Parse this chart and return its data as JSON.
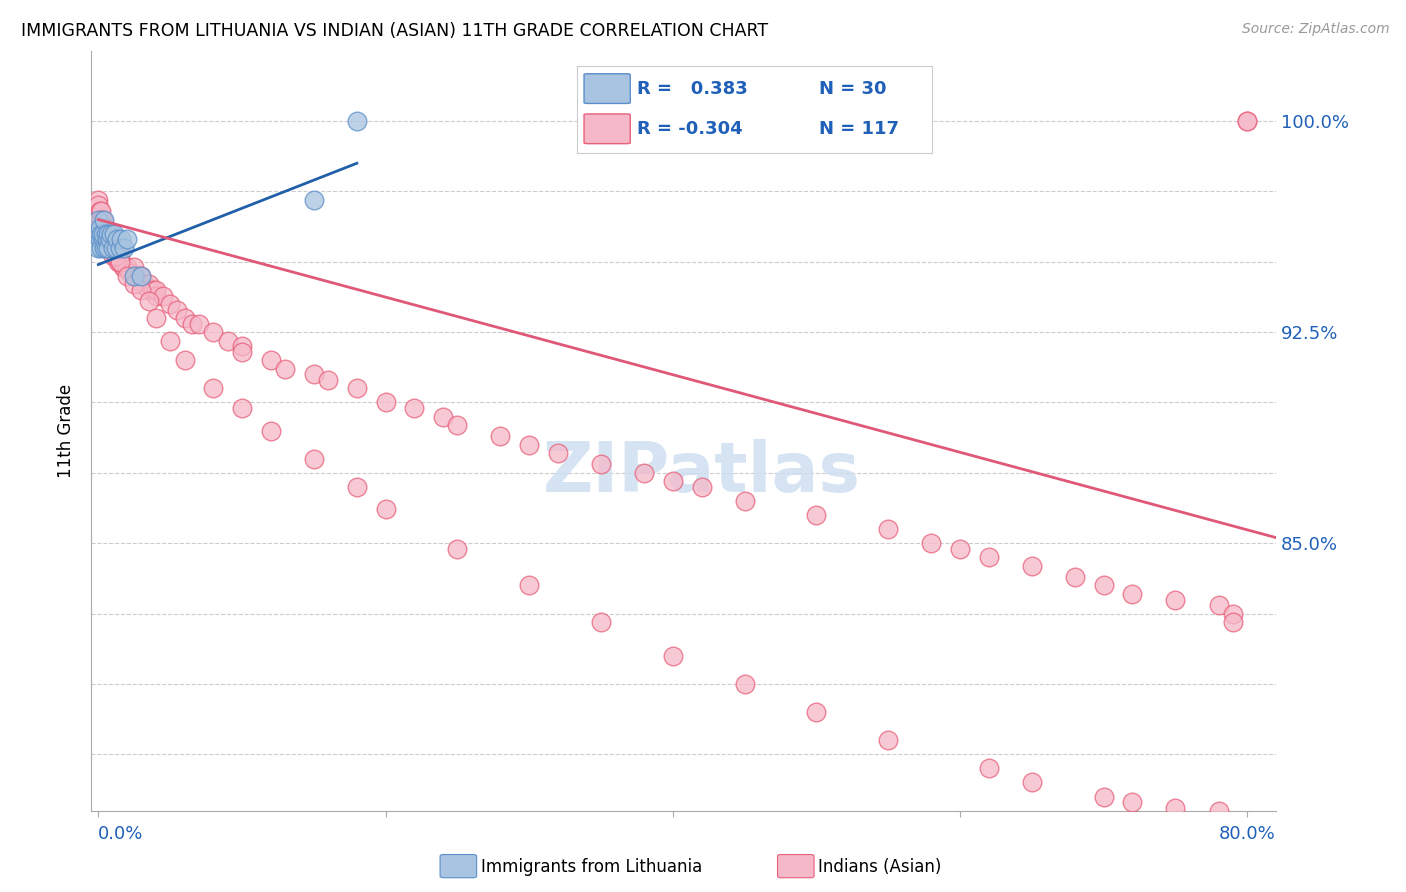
{
  "title": "IMMIGRANTS FROM LITHUANIA VS INDIAN (ASIAN) 11TH GRADE CORRELATION CHART",
  "source_text": "Source: ZipAtlas.com",
  "ylabel": "11th Grade",
  "blue_color": "#a8c4e0",
  "pink_color": "#f5b8c8",
  "blue_edge_color": "#5b8fc9",
  "pink_edge_color": "#e8607a",
  "blue_line_color": "#2060a8",
  "pink_line_color": "#e05878",
  "legend_text_color": "#2060b8",
  "watermark_color": "#ccddf0",
  "xlabel_color": "#2060b8",
  "yticklabel_color": "#2060b8",
  "grid_color": "#cccccc",
  "y_ticks": [
    0.775,
    0.8,
    0.825,
    0.85,
    0.875,
    0.9,
    0.925,
    0.95,
    0.975,
    1.0
  ],
  "y_tick_labels": [
    "",
    "",
    "",
    "85.0%",
    "",
    "",
    "92.5%",
    "",
    "",
    "100.0%"
  ],
  "ylim": [
    0.755,
    1.025
  ],
  "xlim": [
    -0.005,
    0.82
  ],
  "blue_x": [
    0.0,
    0.0,
    0.0,
    0.001,
    0.001,
    0.002,
    0.002,
    0.003,
    0.003,
    0.004,
    0.004,
    0.005,
    0.005,
    0.006,
    0.007,
    0.007,
    0.008,
    0.009,
    0.01,
    0.011,
    0.012,
    0.013,
    0.015,
    0.016,
    0.018,
    0.02,
    0.025,
    0.03,
    0.15,
    0.18
  ],
  "blue_y": [
    0.96,
    0.955,
    0.965,
    0.958,
    0.962,
    0.955,
    0.96,
    0.958,
    0.96,
    0.955,
    0.965,
    0.955,
    0.96,
    0.958,
    0.96,
    0.955,
    0.958,
    0.96,
    0.955,
    0.96,
    0.955,
    0.958,
    0.955,
    0.958,
    0.955,
    0.958,
    0.945,
    0.945,
    0.972,
    1.0
  ],
  "pink_x": [
    0.0,
    0.0,
    0.001,
    0.001,
    0.002,
    0.002,
    0.003,
    0.003,
    0.004,
    0.004,
    0.005,
    0.005,
    0.006,
    0.006,
    0.007,
    0.007,
    0.008,
    0.008,
    0.009,
    0.009,
    0.01,
    0.01,
    0.011,
    0.012,
    0.013,
    0.014,
    0.015,
    0.015,
    0.016,
    0.017,
    0.018,
    0.02,
    0.022,
    0.025,
    0.025,
    0.028,
    0.03,
    0.03,
    0.032,
    0.035,
    0.035,
    0.038,
    0.04,
    0.04,
    0.045,
    0.05,
    0.055,
    0.06,
    0.065,
    0.07,
    0.08,
    0.09,
    0.1,
    0.1,
    0.12,
    0.13,
    0.15,
    0.16,
    0.18,
    0.2,
    0.22,
    0.24,
    0.25,
    0.28,
    0.3,
    0.32,
    0.35,
    0.38,
    0.4,
    0.42,
    0.45,
    0.5,
    0.55,
    0.58,
    0.6,
    0.62,
    0.65,
    0.68,
    0.7,
    0.72,
    0.75,
    0.78,
    0.79,
    0.79,
    0.0,
    0.002,
    0.005,
    0.008,
    0.012,
    0.015,
    0.02,
    0.025,
    0.03,
    0.035,
    0.04,
    0.05,
    0.06,
    0.08,
    0.1,
    0.12,
    0.15,
    0.18,
    0.2,
    0.25,
    0.3,
    0.35,
    0.4,
    0.45,
    0.5,
    0.55,
    0.62,
    0.65,
    0.7,
    0.72,
    0.75,
    0.78,
    0.8,
    0.8
  ],
  "pink_y": [
    0.972,
    0.97,
    0.968,
    0.965,
    0.968,
    0.965,
    0.965,
    0.962,
    0.962,
    0.96,
    0.962,
    0.96,
    0.958,
    0.96,
    0.958,
    0.955,
    0.958,
    0.955,
    0.958,
    0.955,
    0.955,
    0.952,
    0.955,
    0.952,
    0.952,
    0.95,
    0.952,
    0.95,
    0.95,
    0.948,
    0.948,
    0.948,
    0.946,
    0.945,
    0.948,
    0.945,
    0.942,
    0.945,
    0.942,
    0.94,
    0.942,
    0.94,
    0.938,
    0.94,
    0.938,
    0.935,
    0.933,
    0.93,
    0.928,
    0.928,
    0.925,
    0.922,
    0.92,
    0.918,
    0.915,
    0.912,
    0.91,
    0.908,
    0.905,
    0.9,
    0.898,
    0.895,
    0.892,
    0.888,
    0.885,
    0.882,
    0.878,
    0.875,
    0.872,
    0.87,
    0.865,
    0.86,
    0.855,
    0.85,
    0.848,
    0.845,
    0.842,
    0.838,
    0.835,
    0.832,
    0.83,
    0.828,
    0.825,
    0.822,
    0.962,
    0.96,
    0.958,
    0.955,
    0.952,
    0.95,
    0.945,
    0.942,
    0.94,
    0.936,
    0.93,
    0.922,
    0.915,
    0.905,
    0.898,
    0.89,
    0.88,
    0.87,
    0.862,
    0.848,
    0.835,
    0.822,
    0.81,
    0.8,
    0.79,
    0.78,
    0.77,
    0.765,
    0.76,
    0.758,
    0.756,
    0.755,
    1.0,
    1.0
  ],
  "blue_trendline_x": [
    0.0,
    0.18
  ],
  "blue_trendline_y": [
    0.949,
    0.985
  ],
  "pink_trendline_x": [
    0.0,
    0.82
  ],
  "pink_trendline_y": [
    0.965,
    0.852
  ]
}
